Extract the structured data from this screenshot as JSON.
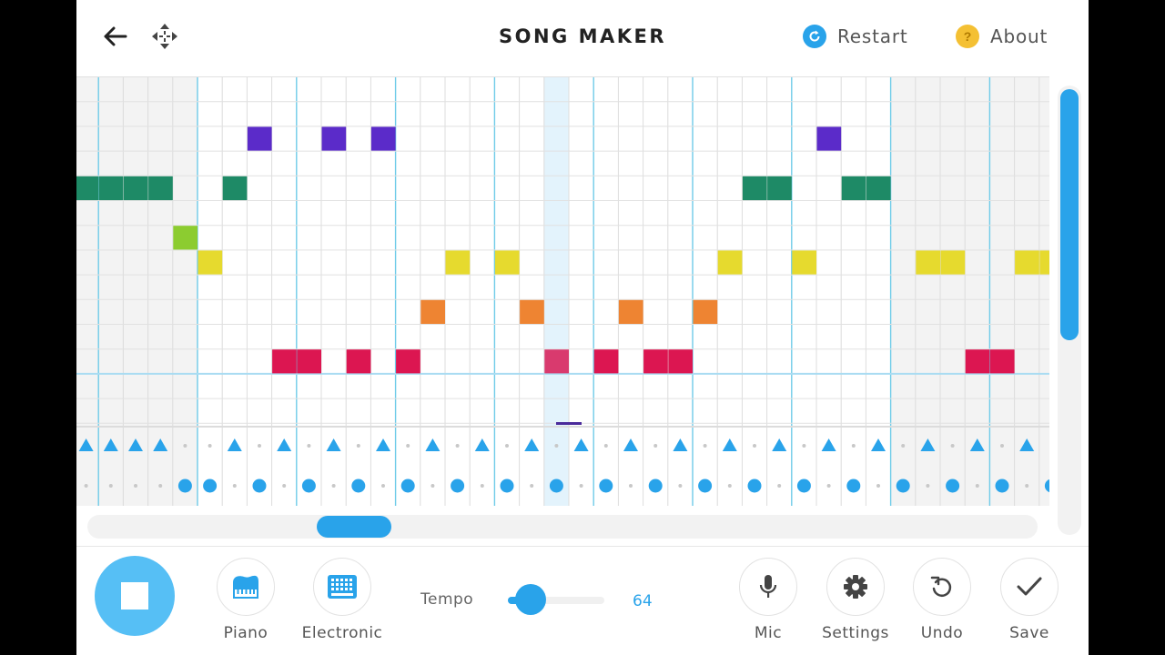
{
  "header": {
    "title": "SONG MAKER",
    "back_icon": "back-arrow-icon",
    "move_icon": "move-arrows-icon",
    "restart": {
      "label": "Restart",
      "icon": "restart-icon",
      "color": "#29a3ea"
    },
    "about": {
      "label": "About",
      "icon": "question-icon",
      "glyph": "?",
      "color": "#f4c033"
    }
  },
  "melody": {
    "columns": 40,
    "rows": 14,
    "highlighted_column": 19,
    "colors": {
      "purple": "#5b2bc9",
      "green": "#1e8a66",
      "lime": "#8ccc30",
      "yellow": "#e6da2e",
      "orange": "#ee8432",
      "red": "#dc1651",
      "pink": "#d93a6e"
    },
    "notes": [
      {
        "col": 7,
        "row": 2,
        "color": "purple"
      },
      {
        "col": 10,
        "row": 2,
        "color": "purple"
      },
      {
        "col": 12,
        "row": 2,
        "color": "purple"
      },
      {
        "col": 30,
        "row": 2,
        "color": "purple"
      },
      {
        "col": 0,
        "row": 4,
        "color": "green"
      },
      {
        "col": 1,
        "row": 4,
        "color": "green"
      },
      {
        "col": 2,
        "row": 4,
        "color": "green"
      },
      {
        "col": 3,
        "row": 4,
        "color": "green"
      },
      {
        "col": 6,
        "row": 4,
        "color": "green"
      },
      {
        "col": 27,
        "row": 4,
        "color": "green"
      },
      {
        "col": 28,
        "row": 4,
        "color": "green"
      },
      {
        "col": 31,
        "row": 4,
        "color": "green"
      },
      {
        "col": 32,
        "row": 4,
        "color": "green"
      },
      {
        "col": 4,
        "row": 6,
        "color": "lime"
      },
      {
        "col": 5,
        "row": 7,
        "color": "yellow"
      },
      {
        "col": 15,
        "row": 7,
        "color": "yellow"
      },
      {
        "col": 17,
        "row": 7,
        "color": "yellow"
      },
      {
        "col": 26,
        "row": 7,
        "color": "yellow"
      },
      {
        "col": 29,
        "row": 7,
        "color": "yellow"
      },
      {
        "col": 34,
        "row": 7,
        "color": "yellow"
      },
      {
        "col": 35,
        "row": 7,
        "color": "yellow"
      },
      {
        "col": 38,
        "row": 7,
        "color": "yellow"
      },
      {
        "col": 39,
        "row": 7,
        "color": "yellow"
      },
      {
        "col": 14,
        "row": 9,
        "color": "orange"
      },
      {
        "col": 18,
        "row": 9,
        "color": "orange"
      },
      {
        "col": 22,
        "row": 9,
        "color": "orange"
      },
      {
        "col": 25,
        "row": 9,
        "color": "orange"
      },
      {
        "col": 8,
        "row": 11,
        "color": "red"
      },
      {
        "col": 9,
        "row": 11,
        "color": "red"
      },
      {
        "col": 11,
        "row": 11,
        "color": "red"
      },
      {
        "col": 13,
        "row": 11,
        "color": "red"
      },
      {
        "col": 19,
        "row": 11,
        "color": "pink"
      },
      {
        "col": 21,
        "row": 11,
        "color": "red"
      },
      {
        "col": 23,
        "row": 11,
        "color": "red"
      },
      {
        "col": 24,
        "row": 11,
        "color": "red"
      },
      {
        "col": 36,
        "row": 11,
        "color": "red"
      },
      {
        "col": 37,
        "row": 11,
        "color": "red"
      }
    ]
  },
  "rhythm": {
    "color": "#29a3ea",
    "top_row_triangles": [
      0,
      1,
      2,
      3,
      6,
      8,
      10,
      12,
      14,
      16,
      18,
      20,
      22,
      24,
      26,
      28,
      30,
      32,
      34,
      36,
      38
    ],
    "bottom_row_circles": [
      4,
      5,
      7,
      9,
      11,
      13,
      15,
      17,
      19,
      21,
      23,
      25,
      27,
      29,
      31,
      33,
      35,
      37,
      39
    ]
  },
  "footer": {
    "play_state": "stop",
    "instruments": [
      {
        "label": "Piano",
        "icon": "piano-icon"
      },
      {
        "label": "Electronic",
        "icon": "electronic-icon"
      }
    ],
    "tempo": {
      "label": "Tempo",
      "value": "64"
    },
    "actions": [
      {
        "label": "Mic",
        "icon": "mic-icon"
      },
      {
        "label": "Settings",
        "icon": "gear-icon"
      },
      {
        "label": "Undo",
        "icon": "undo-icon"
      },
      {
        "label": "Save",
        "icon": "check-icon"
      }
    ]
  }
}
